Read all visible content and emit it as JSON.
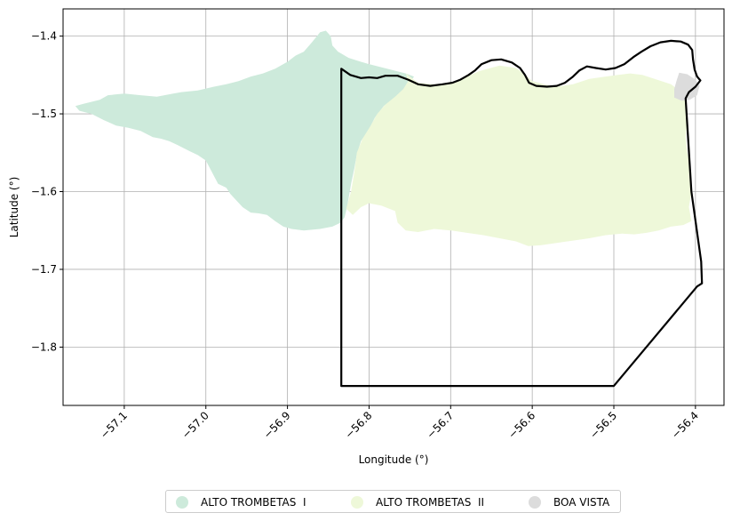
{
  "chart_data": {
    "type": "map",
    "xlabel": "Longitude (°)",
    "ylabel": "Latitude (°)",
    "xlim": [
      -57.175,
      -56.365
    ],
    "ylim": [
      -1.875,
      -1.365
    ],
    "grid": true,
    "x_ticks": [
      -57.1,
      -57.0,
      -56.9,
      -56.8,
      -56.7,
      -56.6,
      -56.5,
      -56.4
    ],
    "x_tick_labels": [
      "−57.1",
      "−57.0",
      "−56.9",
      "−56.8",
      "−56.7",
      "−56.6",
      "−56.5",
      "−56.4"
    ],
    "y_ticks": [
      -1.4,
      -1.5,
      -1.6,
      -1.7,
      -1.8
    ],
    "y_tick_labels": [
      "−1.4",
      "−1.5",
      "−1.6",
      "−1.7",
      "−1.8"
    ],
    "legend_position": "bottom-center",
    "series": [
      {
        "name": "ALTO TROMBETAS  I",
        "color": "#cdeadb",
        "polygon": [
          [
            -57.16,
            -1.49
          ],
          [
            -57.15,
            -1.487
          ],
          [
            -57.13,
            -1.482
          ],
          [
            -57.12,
            -1.476
          ],
          [
            -57.1,
            -1.474
          ],
          [
            -57.08,
            -1.476
          ],
          [
            -57.06,
            -1.478
          ],
          [
            -57.04,
            -1.474
          ],
          [
            -57.03,
            -1.472
          ],
          [
            -57.01,
            -1.47
          ],
          [
            -56.99,
            -1.465
          ],
          [
            -56.975,
            -1.462
          ],
          [
            -56.96,
            -1.458
          ],
          [
            -56.945,
            -1.452
          ],
          [
            -56.93,
            -1.448
          ],
          [
            -56.915,
            -1.442
          ],
          [
            -56.9,
            -1.433
          ],
          [
            -56.89,
            -1.425
          ],
          [
            -56.88,
            -1.42
          ],
          [
            -56.87,
            -1.408
          ],
          [
            -56.86,
            -1.395
          ],
          [
            -56.853,
            -1.393
          ],
          [
            -56.847,
            -1.4
          ],
          [
            -56.845,
            -1.412
          ],
          [
            -56.838,
            -1.42
          ],
          [
            -56.825,
            -1.428
          ],
          [
            -56.81,
            -1.433
          ],
          [
            -56.8,
            -1.436
          ],
          [
            -56.785,
            -1.44
          ],
          [
            -56.77,
            -1.444
          ],
          [
            -56.755,
            -1.448
          ],
          [
            -56.745,
            -1.452
          ],
          [
            -56.75,
            -1.46
          ],
          [
            -56.755,
            -1.47
          ],
          [
            -56.77,
            -1.48
          ],
          [
            -56.782,
            -1.49
          ],
          [
            -56.793,
            -1.505
          ],
          [
            -56.8,
            -1.52
          ],
          [
            -56.81,
            -1.535
          ],
          [
            -56.815,
            -1.552
          ],
          [
            -56.818,
            -1.57
          ],
          [
            -56.822,
            -1.59
          ],
          [
            -56.825,
            -1.608
          ],
          [
            -56.827,
            -1.62
          ],
          [
            -56.83,
            -1.633
          ],
          [
            -56.835,
            -1.64
          ],
          [
            -56.845,
            -1.645
          ],
          [
            -56.86,
            -1.648
          ],
          [
            -56.88,
            -1.65
          ],
          [
            -56.895,
            -1.648
          ],
          [
            -56.905,
            -1.645
          ],
          [
            -56.915,
            -1.638
          ],
          [
            -56.925,
            -1.63
          ],
          [
            -56.935,
            -1.628
          ],
          [
            -56.945,
            -1.627
          ],
          [
            -56.955,
            -1.62
          ],
          [
            -56.962,
            -1.612
          ],
          [
            -56.97,
            -1.603
          ],
          [
            -56.975,
            -1.595
          ],
          [
            -56.985,
            -1.59
          ],
          [
            -56.99,
            -1.58
          ],
          [
            -56.995,
            -1.57
          ],
          [
            -57.0,
            -1.56
          ],
          [
            -57.01,
            -1.553
          ],
          [
            -57.02,
            -1.548
          ],
          [
            -57.035,
            -1.54
          ],
          [
            -57.045,
            -1.535
          ],
          [
            -57.055,
            -1.532
          ],
          [
            -57.065,
            -1.53
          ],
          [
            -57.08,
            -1.522
          ],
          [
            -57.095,
            -1.518
          ],
          [
            -57.11,
            -1.515
          ],
          [
            -57.125,
            -1.508
          ],
          [
            -57.14,
            -1.5
          ],
          [
            -57.155,
            -1.496
          ]
        ]
      },
      {
        "name": "ALTO TROMBETAS  II",
        "color": "#eef8d9",
        "polygon": [
          [
            -56.755,
            -1.448
          ],
          [
            -56.74,
            -1.46
          ],
          [
            -56.72,
            -1.462
          ],
          [
            -56.7,
            -1.46
          ],
          [
            -56.68,
            -1.452
          ],
          [
            -56.665,
            -1.445
          ],
          [
            -56.64,
            -1.438
          ],
          [
            -56.62,
            -1.441
          ],
          [
            -56.61,
            -1.448
          ],
          [
            -56.6,
            -1.458
          ],
          [
            -56.585,
            -1.462
          ],
          [
            -56.57,
            -1.465
          ],
          [
            -56.55,
            -1.462
          ],
          [
            -56.53,
            -1.455
          ],
          [
            -56.51,
            -1.452
          ],
          [
            -56.495,
            -1.45
          ],
          [
            -56.48,
            -1.448
          ],
          [
            -56.465,
            -1.45
          ],
          [
            -56.45,
            -1.455
          ],
          [
            -56.43,
            -1.462
          ],
          [
            -56.42,
            -1.47
          ],
          [
            -56.412,
            -1.478
          ],
          [
            -56.41,
            -1.495
          ],
          [
            -56.41,
            -1.51
          ],
          [
            -56.412,
            -1.53
          ],
          [
            -56.41,
            -1.55
          ],
          [
            -56.405,
            -1.575
          ],
          [
            -56.405,
            -1.6
          ],
          [
            -56.408,
            -1.62
          ],
          [
            -56.405,
            -1.638
          ],
          [
            -56.415,
            -1.643
          ],
          [
            -56.43,
            -1.645
          ],
          [
            -56.445,
            -1.65
          ],
          [
            -56.46,
            -1.653
          ],
          [
            -56.475,
            -1.655
          ],
          [
            -56.49,
            -1.654
          ],
          [
            -56.51,
            -1.656
          ],
          [
            -56.53,
            -1.66
          ],
          [
            -56.55,
            -1.663
          ],
          [
            -56.57,
            -1.666
          ],
          [
            -56.59,
            -1.669
          ],
          [
            -56.605,
            -1.67
          ],
          [
            -56.62,
            -1.664
          ],
          [
            -56.64,
            -1.66
          ],
          [
            -56.66,
            -1.656
          ],
          [
            -56.68,
            -1.653
          ],
          [
            -56.7,
            -1.65
          ],
          [
            -56.72,
            -1.648
          ],
          [
            -56.74,
            -1.652
          ],
          [
            -56.755,
            -1.65
          ],
          [
            -56.765,
            -1.64
          ],
          [
            -56.768,
            -1.625
          ],
          [
            -56.785,
            -1.618
          ],
          [
            -56.8,
            -1.615
          ],
          [
            -56.81,
            -1.62
          ],
          [
            -56.82,
            -1.63
          ],
          [
            -56.828,
            -1.622
          ],
          [
            -56.822,
            -1.6
          ],
          [
            -56.818,
            -1.575
          ],
          [
            -56.815,
            -1.55
          ],
          [
            -56.808,
            -1.532
          ],
          [
            -56.798,
            -1.515
          ],
          [
            -56.79,
            -1.5
          ],
          [
            -56.78,
            -1.488
          ],
          [
            -56.768,
            -1.478
          ],
          [
            -56.758,
            -1.468
          ],
          [
            -56.752,
            -1.458
          ]
        ]
      },
      {
        "name": "BOA VISTA",
        "color": "#dcdcdc",
        "polygon": [
          [
            -56.42,
            -1.447
          ],
          [
            -56.41,
            -1.449
          ],
          [
            -56.4,
            -1.456
          ],
          [
            -56.395,
            -1.464
          ],
          [
            -56.398,
            -1.476
          ],
          [
            -56.407,
            -1.482
          ],
          [
            -56.417,
            -1.483
          ],
          [
            -56.426,
            -1.479
          ],
          [
            -56.426,
            -1.468
          ],
          [
            -56.423,
            -1.457
          ]
        ]
      }
    ],
    "boundary": {
      "color": "#000000",
      "polygon": [
        [
          -56.834,
          -1.442
        ],
        [
          -56.823,
          -1.45
        ],
        [
          -56.81,
          -1.454
        ],
        [
          -56.8,
          -1.453
        ],
        [
          -56.79,
          -1.454
        ],
        [
          -56.78,
          -1.451
        ],
        [
          -56.765,
          -1.451
        ],
        [
          -56.752,
          -1.456
        ],
        [
          -56.74,
          -1.462
        ],
        [
          -56.725,
          -1.464
        ],
        [
          -56.71,
          -1.462
        ],
        [
          -56.698,
          -1.46
        ],
        [
          -56.688,
          -1.456
        ],
        [
          -56.678,
          -1.45
        ],
        [
          -56.67,
          -1.444
        ],
        [
          -56.662,
          -1.436
        ],
        [
          -56.65,
          -1.431
        ],
        [
          -56.638,
          -1.43
        ],
        [
          -56.625,
          -1.434
        ],
        [
          -56.615,
          -1.441
        ],
        [
          -56.609,
          -1.45
        ],
        [
          -56.604,
          -1.46
        ],
        [
          -56.595,
          -1.464
        ],
        [
          -56.582,
          -1.465
        ],
        [
          -56.57,
          -1.464
        ],
        [
          -56.56,
          -1.46
        ],
        [
          -56.55,
          -1.452
        ],
        [
          -56.542,
          -1.444
        ],
        [
          -56.533,
          -1.439
        ],
        [
          -56.522,
          -1.441
        ],
        [
          -56.51,
          -1.443
        ],
        [
          -56.498,
          -1.441
        ],
        [
          -56.487,
          -1.436
        ],
        [
          -56.476,
          -1.427
        ],
        [
          -56.466,
          -1.42
        ],
        [
          -56.455,
          -1.413
        ],
        [
          -56.443,
          -1.408
        ],
        [
          -56.43,
          -1.406
        ],
        [
          -56.418,
          -1.407
        ],
        [
          -56.409,
          -1.411
        ],
        [
          -56.404,
          -1.418
        ],
        [
          -56.403,
          -1.43
        ],
        [
          -56.401,
          -1.443
        ],
        [
          -56.398,
          -1.452
        ],
        [
          -56.394,
          -1.457
        ],
        [
          -56.4,
          -1.465
        ],
        [
          -56.408,
          -1.472
        ],
        [
          -56.412,
          -1.48
        ],
        [
          -56.405,
          -1.6
        ],
        [
          -56.393,
          -1.69
        ],
        [
          -56.392,
          -1.718
        ],
        [
          -56.398,
          -1.722
        ],
        [
          -56.5,
          -1.85
        ],
        [
          -56.834,
          -1.85
        ]
      ]
    }
  },
  "legend": {
    "items": [
      {
        "label": "ALTO TROMBETAS  I",
        "color": "#cdeadb"
      },
      {
        "label": "ALTO TROMBETAS  II",
        "color": "#eef8d9"
      },
      {
        "label": "BOA VISTA",
        "color": "#dcdcdc"
      }
    ]
  }
}
